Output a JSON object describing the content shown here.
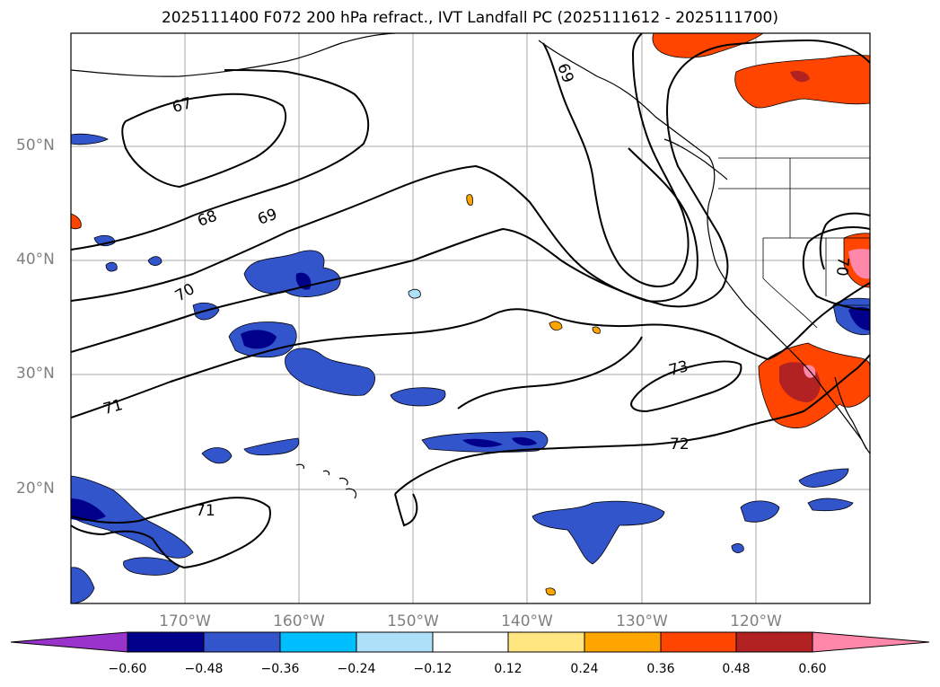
{
  "title": "2025111400 F072 200 hPa refract., IVT Landfall PC (2025111612 - 2025111700)",
  "lat_labels": [
    "50°N",
    "40°N",
    "30°N",
    "20°N"
  ],
  "lon_labels": [
    "170°W",
    "160°W",
    "150°W",
    "140°W",
    "130°W",
    "120°W"
  ],
  "contour_labels": [
    "67",
    "68",
    "69",
    "69",
    "70",
    "70",
    "71",
    "71",
    "72",
    "73"
  ],
  "colorbar": {
    "ticks": [
      "−0.60",
      "−0.48",
      "−0.36",
      "−0.24",
      "−0.12",
      "0.12",
      "0.24",
      "0.36",
      "0.48",
      "0.60"
    ],
    "colors": [
      "#9933cc",
      "#00008b",
      "#3355cc",
      "#00bfff",
      "#aee0fa",
      "#ffffff",
      "#ffe680",
      "#ffa500",
      "#ff4500",
      "#b22222",
      "#ff88aa"
    ]
  },
  "chart_data": {
    "type": "map",
    "title": "2025111400 F072 200 hPa refract., IVT Landfall PC (2025111612 - 2025111700)",
    "lon_range": [
      -180,
      -110
    ],
    "lat_range": [
      10,
      60
    ],
    "grid": true,
    "contour_levels": [
      67,
      68,
      69,
      70,
      71,
      72,
      73
    ],
    "colorbar_ticks": [
      -0.6,
      -0.48,
      -0.36,
      -0.24,
      -0.12,
      0.12,
      0.24,
      0.36,
      0.48,
      0.6
    ]
  }
}
